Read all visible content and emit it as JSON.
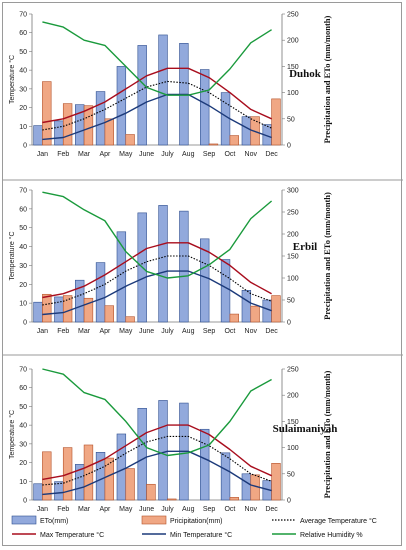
{
  "chart_data": [
    {
      "type": "bar",
      "station": "Duhok",
      "categories": [
        "Jan",
        "Feb",
        "Mar",
        "Apr",
        "May",
        "June",
        "July",
        "Aug",
        "Sep",
        "Oct",
        "Nov",
        "Dec"
      ],
      "ylabel": "Temperature °C",
      "y2label": "Precipitation and ETo (mm/month)",
      "ylim": [
        0,
        70
      ],
      "yticks": [
        0,
        10,
        20,
        30,
        40,
        50,
        60,
        70
      ],
      "y2lim": [
        0,
        250
      ],
      "y2ticks": [
        0,
        50,
        100,
        150,
        200,
        250
      ],
      "grid": false,
      "series": [
        {
          "key": "eto",
          "axis": "y2",
          "type": "bar",
          "values": [
            37,
            46,
            77,
            102,
            150,
            190,
            210,
            194,
            144,
            100,
            54,
            39
          ]
        },
        {
          "key": "precip",
          "axis": "y2",
          "type": "bar",
          "values": [
            121,
            79,
            75,
            50,
            20,
            0,
            0,
            0,
            2,
            18,
            54,
            88
          ]
        },
        {
          "key": "avg",
          "axis": "y",
          "type": "line",
          "values": [
            8,
            10,
            14,
            19,
            25,
            31,
            34,
            33,
            28,
            21,
            14,
            9
          ]
        },
        {
          "key": "max",
          "axis": "y",
          "type": "line",
          "values": [
            12,
            14,
            18,
            23,
            30,
            37,
            41,
            41,
            36,
            28,
            19,
            14
          ]
        },
        {
          "key": "min",
          "axis": "y",
          "type": "line",
          "values": [
            3,
            4,
            8,
            12,
            17,
            23,
            27,
            27,
            21,
            14,
            8,
            4
          ]
        },
        {
          "key": "rh",
          "axis": "y2",
          "type": "line",
          "values": [
            235,
            225,
            200,
            190,
            150,
            110,
            95,
            95,
            105,
            145,
            195,
            220
          ]
        }
      ]
    },
    {
      "type": "bar",
      "station": "Erbil",
      "categories": [
        "Jan",
        "Feb",
        "Mar",
        "Apr",
        "May",
        "June",
        "July",
        "Aug",
        "Sep",
        "Oct",
        "Nov",
        "Dec"
      ],
      "ylabel": "Temperature °C",
      "y2label": "Precipitation and ETo (mm/month)",
      "ylim": [
        0,
        70
      ],
      "yticks": [
        0,
        10,
        20,
        30,
        40,
        50,
        60,
        70
      ],
      "y2lim": [
        0,
        300
      ],
      "y2ticks": [
        0,
        50,
        100,
        150,
        200,
        250,
        300
      ],
      "grid": false,
      "series": [
        {
          "key": "eto",
          "axis": "y2",
          "type": "bar",
          "values": [
            45,
            57,
            95,
            135,
            205,
            248,
            265,
            252,
            189,
            142,
            72,
            50
          ]
        },
        {
          "key": "precip",
          "axis": "y2",
          "type": "bar",
          "values": [
            63,
            60,
            54,
            37,
            12,
            0,
            0,
            0,
            0,
            18,
            36,
            60
          ]
        },
        {
          "key": "avg",
          "axis": "y",
          "type": "line",
          "values": [
            9,
            11,
            15,
            20,
            27,
            32,
            35,
            35,
            30,
            23,
            15,
            11
          ]
        },
        {
          "key": "max",
          "axis": "y",
          "type": "line",
          "values": [
            13,
            15,
            19,
            25,
            32,
            39,
            42,
            42,
            37,
            30,
            21,
            15
          ]
        },
        {
          "key": "min",
          "axis": "y",
          "type": "line",
          "values": [
            4,
            5,
            9,
            13,
            19,
            24,
            27,
            27,
            23,
            17,
            10,
            6
          ]
        },
        {
          "key": "rh",
          "axis": "y2",
          "type": "line",
          "values": [
            295,
            285,
            255,
            230,
            160,
            115,
            100,
            105,
            130,
            165,
            235,
            275
          ]
        }
      ]
    },
    {
      "type": "bar",
      "station": "Sulaimaniyah",
      "categories": [
        "Jan",
        "Feb",
        "Mar",
        "Apr",
        "May",
        "June",
        "July",
        "Aug",
        "Sep",
        "Oct",
        "Nov",
        "Dec"
      ],
      "ylabel": "Temperature °C",
      "y2label": "Precipitation and ETo (mm/month)",
      "ylim": [
        0,
        70
      ],
      "yticks": [
        0,
        10,
        20,
        30,
        40,
        50,
        60,
        70
      ],
      "y2lim": [
        0,
        250
      ],
      "y2ticks": [
        0,
        50,
        100,
        150,
        200,
        250
      ],
      "grid": false,
      "series": [
        {
          "key": "eto",
          "axis": "y2",
          "type": "bar",
          "values": [
            31,
            35,
            68,
            91,
            126,
            175,
            190,
            185,
            135,
            90,
            50,
            37
          ]
        },
        {
          "key": "precip",
          "axis": "y2",
          "type": "bar",
          "values": [
            92,
            100,
            105,
            80,
            60,
            30,
            2,
            0,
            0,
            5,
            48,
            70
          ]
        },
        {
          "key": "avg",
          "axis": "y",
          "type": "line",
          "values": [
            8,
            9,
            13,
            18,
            25,
            31,
            34,
            34,
            29,
            22,
            14,
            10
          ]
        },
        {
          "key": "max",
          "axis": "y",
          "type": "line",
          "values": [
            11,
            13,
            17,
            22,
            29,
            36,
            40,
            40,
            35,
            27,
            18,
            13
          ]
        },
        {
          "key": "min",
          "axis": "y",
          "type": "line",
          "values": [
            3,
            4,
            7,
            12,
            17,
            23,
            26,
            26,
            21,
            15,
            8,
            5
          ]
        },
        {
          "key": "rh",
          "axis": "y2",
          "type": "line",
          "values": [
            250,
            240,
            205,
            192,
            150,
            100,
            85,
            90,
            105,
            150,
            208,
            230
          ]
        }
      ]
    }
  ],
  "legend": {
    "placement": "bottom",
    "items": [
      {
        "key": "eto",
        "label": "ETo(mm)",
        "kind": "bar",
        "color": "#92a9dc"
      },
      {
        "key": "precip",
        "label": "Pricipitation(mm)",
        "kind": "bar",
        "color": "#f0a784"
      },
      {
        "key": "avg",
        "label": "Average Temperature °C",
        "kind": "dotted",
        "color": "#000000"
      },
      {
        "key": "max",
        "label": "Max Temperature °C",
        "kind": "line",
        "color": "#a80d1d"
      },
      {
        "key": "min",
        "label": "Min Temperature °C",
        "kind": "line",
        "color": "#1c3a7a"
      },
      {
        "key": "rh",
        "label": "Relative Humidity %",
        "kind": "line",
        "color": "#1a9a3c"
      }
    ]
  },
  "colors": {
    "eto_fill": "#92a9dc",
    "eto_stroke": "#2f4f8f",
    "precip_fill": "#f0a784",
    "precip_stroke": "#b5522a",
    "axis": "#777777"
  }
}
